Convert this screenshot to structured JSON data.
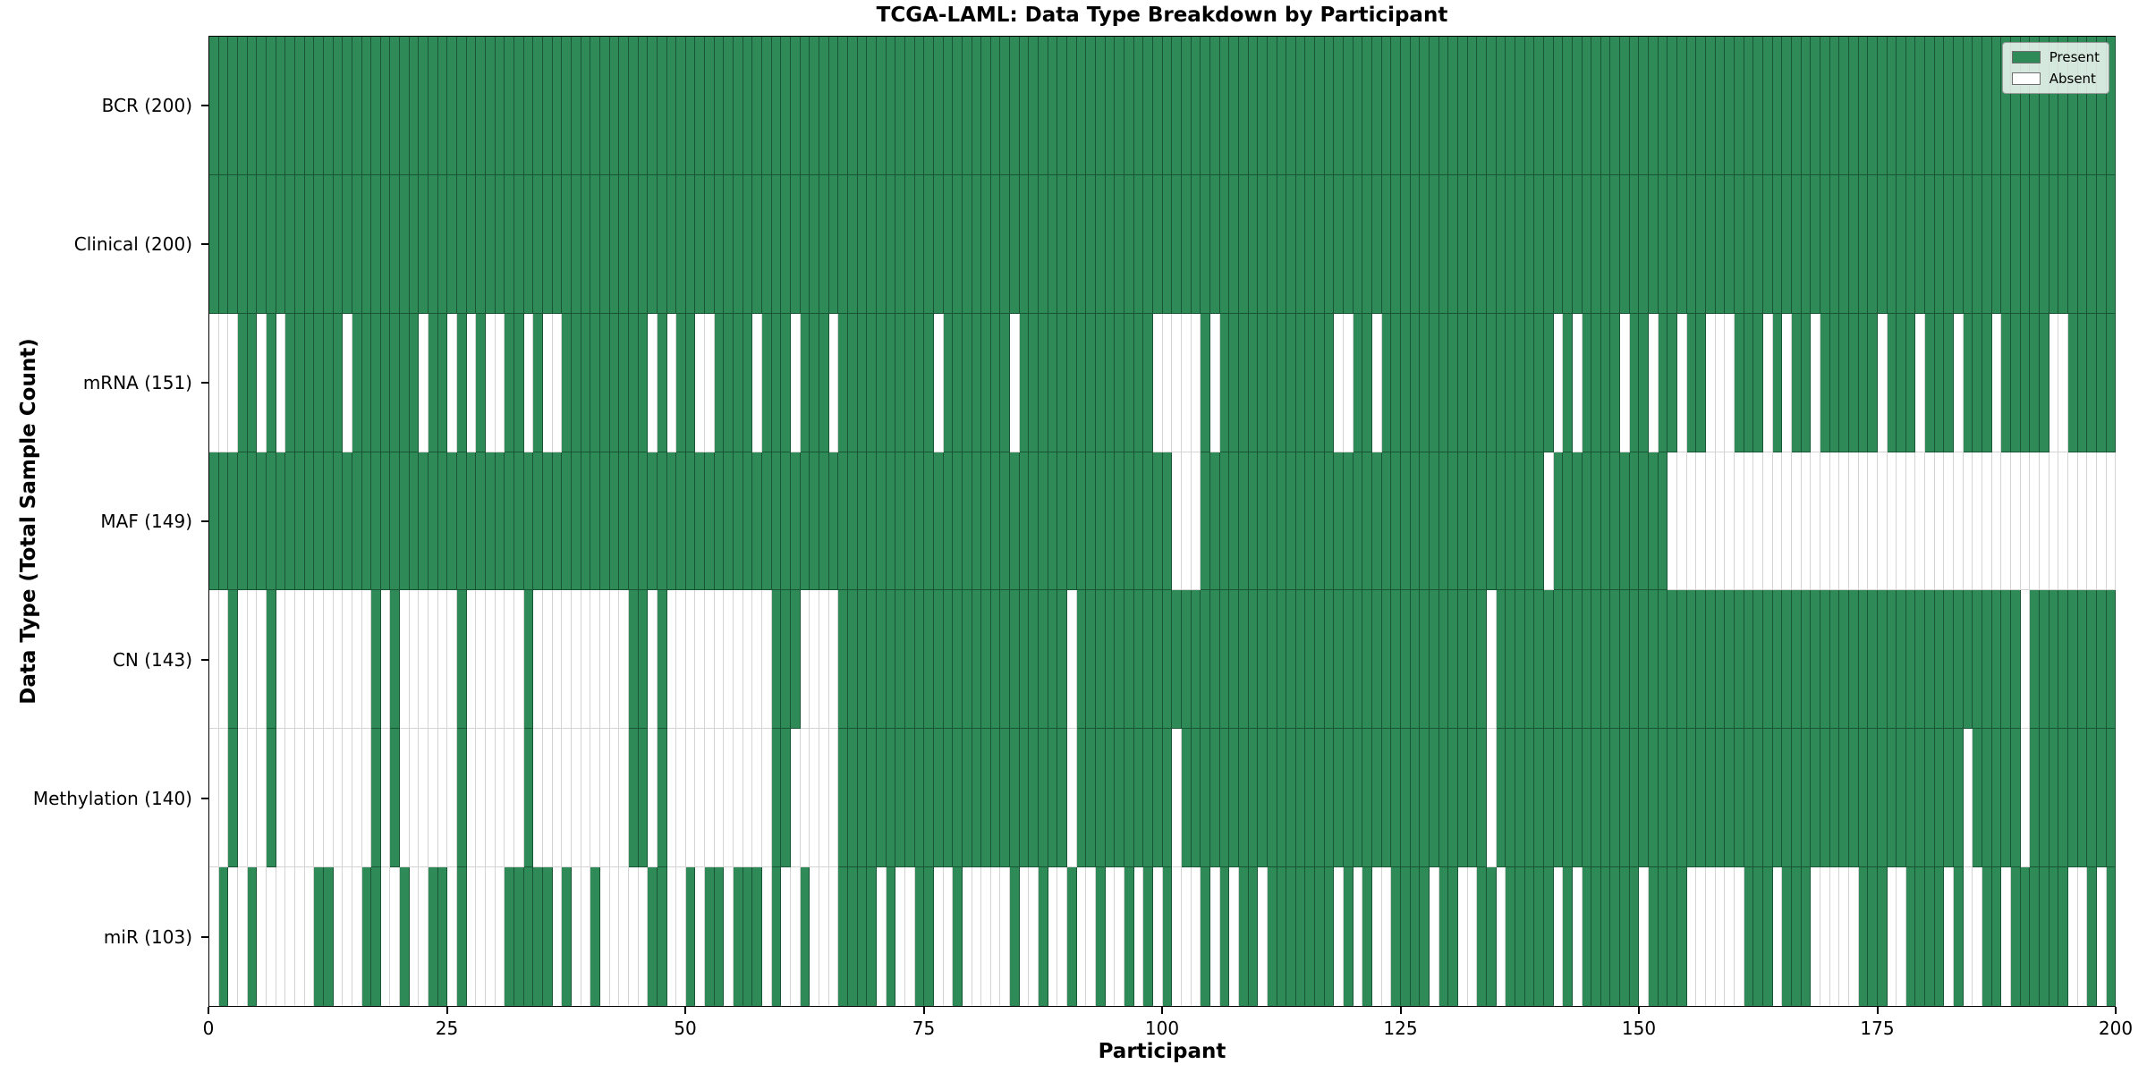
{
  "chart_data": {
    "type": "heatmap",
    "title": "TCGA-LAML: Data Type Breakdown by Participant",
    "xlabel": "Participant",
    "ylabel": "Data Type (Total Sample Count)",
    "n_participants": 200,
    "x_ticks": [
      0,
      25,
      50,
      75,
      100,
      125,
      150,
      175,
      200
    ],
    "grid": false,
    "legend": {
      "position": "upper right",
      "items": [
        {
          "label": "Present",
          "color": "#2e8b57"
        },
        {
          "label": "Absent",
          "color": "#ffffff"
        }
      ]
    },
    "colors": {
      "present": "#2e8b57",
      "absent": "#ffffff"
    },
    "rows": [
      {
        "name": "BCR",
        "label": "BCR (200)",
        "present_count": 200,
        "mode": "absent",
        "indices": []
      },
      {
        "name": "Clinical",
        "label": "Clinical (200)",
        "present_count": 200,
        "mode": "absent",
        "indices": []
      },
      {
        "name": "mRNA",
        "label": "mRNA (151)",
        "present_count": 151,
        "mode": "absent",
        "indices": [
          0,
          1,
          2,
          5,
          7,
          14,
          22,
          25,
          27,
          29,
          30,
          33,
          35,
          36,
          46,
          48,
          51,
          52,
          57,
          61,
          65,
          76,
          84,
          99,
          100,
          101,
          102,
          103,
          105,
          118,
          119,
          122,
          141,
          143,
          148,
          151,
          154,
          157,
          158,
          159,
          163,
          165,
          168,
          175,
          179,
          183,
          187,
          193,
          194
        ]
      },
      {
        "name": "MAF",
        "label": "MAF (149)",
        "present_count": 149,
        "mode": "absent",
        "indices": [
          101,
          102,
          103,
          140,
          153,
          154,
          155,
          156,
          157,
          158,
          159,
          160,
          161,
          162,
          163,
          164,
          165,
          166,
          167,
          168,
          169,
          170,
          171,
          172,
          173,
          174,
          175,
          176,
          177,
          178,
          179,
          180,
          181,
          182,
          183,
          184,
          185,
          186,
          187,
          188,
          189,
          190,
          191,
          192,
          193,
          194,
          195,
          196,
          197,
          198,
          199
        ]
      },
      {
        "name": "CN",
        "label": "CN (143)",
        "present_count": 143,
        "mode": "absent",
        "indices": [
          0,
          1,
          3,
          4,
          5,
          7,
          8,
          9,
          10,
          11,
          12,
          13,
          14,
          15,
          16,
          18,
          20,
          21,
          22,
          23,
          24,
          25,
          27,
          28,
          29,
          30,
          31,
          32,
          34,
          35,
          36,
          37,
          38,
          39,
          40,
          41,
          42,
          43,
          46,
          48,
          49,
          50,
          51,
          52,
          53,
          54,
          55,
          56,
          57,
          58,
          62,
          63,
          64,
          65,
          90,
          134,
          190
        ]
      },
      {
        "name": "Methylation",
        "label": "Methylation (140)",
        "present_count": 140,
        "mode": "absent",
        "indices": [
          0,
          1,
          3,
          4,
          5,
          7,
          8,
          9,
          10,
          11,
          12,
          13,
          14,
          15,
          16,
          18,
          20,
          21,
          22,
          23,
          24,
          25,
          27,
          28,
          29,
          30,
          31,
          32,
          34,
          35,
          36,
          37,
          38,
          39,
          40,
          41,
          42,
          43,
          46,
          48,
          49,
          50,
          51,
          52,
          53,
          54,
          55,
          56,
          57,
          58,
          61,
          62,
          63,
          64,
          65,
          90,
          101,
          134,
          184,
          190
        ]
      },
      {
        "name": "miR",
        "label": "miR (103)",
        "present_count": 103,
        "mode": "present",
        "indices": [
          1,
          4,
          11,
          12,
          16,
          17,
          20,
          23,
          24,
          26,
          31,
          32,
          33,
          34,
          35,
          37,
          40,
          46,
          47,
          50,
          52,
          53,
          55,
          56,
          57,
          59,
          62,
          66,
          67,
          68,
          69,
          71,
          74,
          75,
          78,
          84,
          87,
          90,
          93,
          96,
          98,
          100,
          104,
          106,
          108,
          109,
          111,
          112,
          113,
          114,
          115,
          116,
          117,
          119,
          121,
          124,
          125,
          126,
          127,
          129,
          130,
          133,
          134,
          136,
          137,
          138,
          139,
          140,
          142,
          144,
          145,
          146,
          147,
          148,
          149,
          151,
          152,
          153,
          154,
          161,
          162,
          163,
          165,
          166,
          167,
          173,
          174,
          175,
          178,
          179,
          180,
          181,
          183,
          186,
          187,
          189,
          190,
          191,
          192,
          193,
          194,
          197,
          199
        ]
      }
    ]
  }
}
